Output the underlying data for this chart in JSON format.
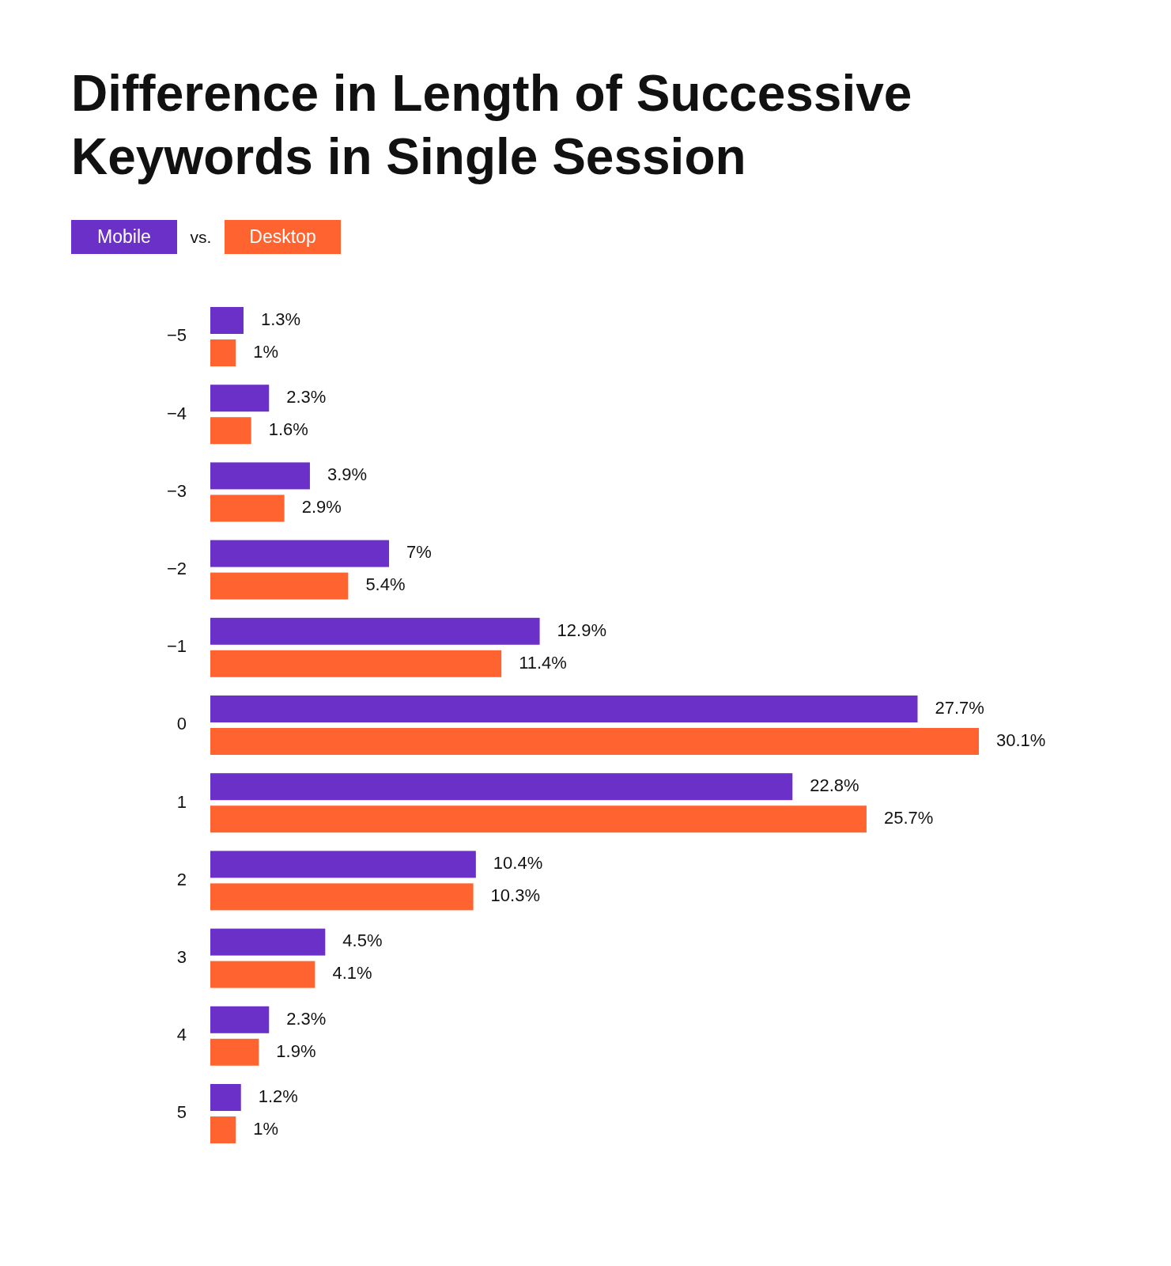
{
  "chart_data": {
    "type": "bar",
    "orientation": "horizontal",
    "title": "Difference in Length of Successive Keywords in Single Session",
    "categories": [
      "−5",
      "−4",
      "−3",
      "−2",
      "−1",
      "0",
      "1",
      "2",
      "3",
      "4",
      "5"
    ],
    "series": [
      {
        "name": "Mobile",
        "color": "#6a30c8",
        "values": [
          1.3,
          2.3,
          3.9,
          7,
          12.9,
          27.7,
          22.8,
          10.4,
          4.5,
          2.3,
          1.2
        ],
        "value_labels": [
          "1.3%",
          "2.3%",
          "3.9%",
          "7%",
          "12.9%",
          "27.7%",
          "22.8%",
          "10.4%",
          "4.5%",
          "2.3%",
          "1.2%"
        ]
      },
      {
        "name": "Desktop",
        "color": "#ff6430",
        "values": [
          1,
          1.6,
          2.9,
          5.4,
          11.4,
          30.1,
          25.7,
          10.3,
          4.1,
          1.9,
          1
        ],
        "value_labels": [
          "1%",
          "1.6%",
          "2.9%",
          "5.4%",
          "11.4%",
          "30.1%",
          "25.7%",
          "10.3%",
          "4.1%",
          "1.9%",
          "1%"
        ]
      }
    ],
    "legend": "top left",
    "annotations": [
      "vs."
    ]
  }
}
